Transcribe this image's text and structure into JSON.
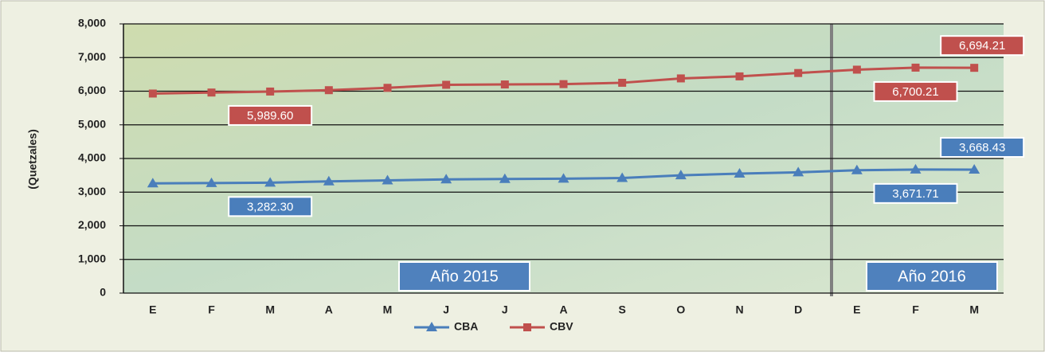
{
  "chart_data": {
    "type": "line",
    "y_label": "(Quetzales)",
    "annotations": [
      "Año 2015",
      "Año 2016"
    ],
    "categories": [
      "E",
      "F",
      "M",
      "A",
      "M",
      "J",
      "J",
      "A",
      "S",
      "O",
      "N",
      "D",
      "E",
      "F",
      "M"
    ],
    "series": [
      {
        "name": "CBA",
        "color": "#4a7ebb",
        "marker": "triangle",
        "values": [
          3260,
          3270,
          3282.3,
          3320,
          3350,
          3380,
          3390,
          3400,
          3420,
          3500,
          3550,
          3590,
          3650,
          3671.71,
          3668.43
        ],
        "value_labels": [
          null,
          null,
          "3,282.30",
          null,
          null,
          null,
          null,
          null,
          null,
          null,
          null,
          null,
          null,
          "3,671.71",
          "3,668.43"
        ]
      },
      {
        "name": "CBV",
        "color": "#c0504d",
        "marker": "square",
        "values": [
          5930,
          5960,
          5989.6,
          6030,
          6100,
          6190,
          6200,
          6210,
          6250,
          6380,
          6440,
          6540,
          6640,
          6700.21,
          6694.21
        ],
        "value_labels": [
          null,
          null,
          "5,989.60",
          null,
          null,
          null,
          null,
          null,
          null,
          null,
          null,
          null,
          null,
          "6,700.21",
          "6,694.21"
        ]
      }
    ],
    "ylim": [
      0,
      8000
    ],
    "yticks": [
      0,
      {
        "value": 1000,
        "label": "1,000"
      },
      {
        "value": 2000,
        "label": "2,000"
      },
      {
        "value": 3000,
        "label": "3,000"
      },
      {
        "value": 4000,
        "label": "4,000"
      },
      {
        "value": 5000,
        "label": "5,000"
      },
      {
        "value": 6000,
        "label": "6,000"
      },
      {
        "value": 7000,
        "label": "7,000"
      },
      {
        "value": 8000,
        "label": "8,000"
      }
    ],
    "grid": true,
    "legend": "bottom"
  }
}
